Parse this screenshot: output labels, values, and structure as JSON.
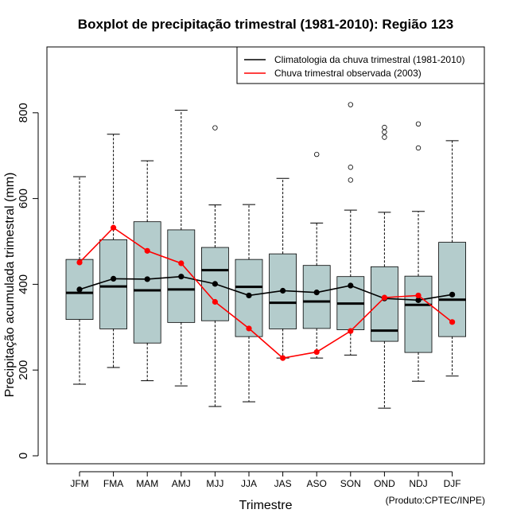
{
  "chart_data": {
    "type": "boxplot",
    "title": "Boxplot de precipitação trimestral (1981-2010): Região 123",
    "xlabel": "Trimestre",
    "ylabel": "Precipitação acumulada trimestral (mm)",
    "credit": "(Produto:CPTEC/INPE)",
    "ylim": [
      -20,
      930
    ],
    "yticks": [
      0,
      200,
      400,
      600,
      800
    ],
    "ytick_labels": [
      "0",
      "200",
      "400",
      "600",
      "800"
    ],
    "categories": [
      "JFM",
      "FMA",
      "MAM",
      "AMJ",
      "MJJ",
      "JJA",
      "JAS",
      "ASO",
      "SON",
      "OND",
      "NDJ",
      "DJF"
    ],
    "boxes": [
      {
        "whisker_low": 167,
        "q1": 318,
        "median": 380,
        "q3": 458,
        "whisker_high": 651,
        "outliers": []
      },
      {
        "whisker_low": 206,
        "q1": 296,
        "median": 395,
        "q3": 504,
        "whisker_high": 750,
        "outliers": []
      },
      {
        "whisker_low": 175,
        "q1": 263,
        "median": 386,
        "q3": 546,
        "whisker_high": 688,
        "outliers": []
      },
      {
        "whisker_low": 163,
        "q1": 311,
        "median": 388,
        "q3": 527,
        "whisker_high": 806,
        "outliers": []
      },
      {
        "whisker_low": 115,
        "q1": 315,
        "median": 433,
        "q3": 486,
        "whisker_high": 585,
        "outliers": [
          765
        ]
      },
      {
        "whisker_low": 126,
        "q1": 278,
        "median": 394,
        "q3": 458,
        "whisker_high": 586,
        "outliers": []
      },
      {
        "whisker_low": 228,
        "q1": 296,
        "median": 357,
        "q3": 471,
        "whisker_high": 647,
        "outliers": []
      },
      {
        "whisker_low": 228,
        "q1": 297,
        "median": 360,
        "q3": 444,
        "whisker_high": 543,
        "outliers": [
          703
        ]
      },
      {
        "whisker_low": 235,
        "q1": 294,
        "median": 355,
        "q3": 418,
        "whisker_high": 573,
        "outliers": [
          643,
          673,
          819
        ]
      },
      {
        "whisker_low": 111,
        "q1": 267,
        "median": 292,
        "q3": 441,
        "whisker_high": 568,
        "outliers": [
          743,
          755,
          766
        ]
      },
      {
        "whisker_low": 174,
        "q1": 241,
        "median": 352,
        "q3": 419,
        "whisker_high": 570,
        "outliers": [
          718,
          774
        ]
      },
      {
        "whisker_low": 186,
        "q1": 278,
        "median": 364,
        "q3": 498,
        "whisker_high": 735,
        "outliers": []
      }
    ],
    "series": [
      {
        "name": "Climatologia da chuva trimestral (1981-2010)",
        "color": "#000000",
        "values": [
          388,
          413,
          412,
          418,
          401,
          374,
          385,
          381,
          397,
          367,
          363,
          376
        ]
      },
      {
        "name": "Chuva trimestral observada (2003)",
        "color": "#ff0000",
        "values": [
          451,
          532,
          478,
          449,
          359,
          297,
          228,
          242,
          291,
          369,
          374,
          312
        ]
      }
    ],
    "box_fill": "#b4cccc",
    "legend_position": "top-right"
  }
}
